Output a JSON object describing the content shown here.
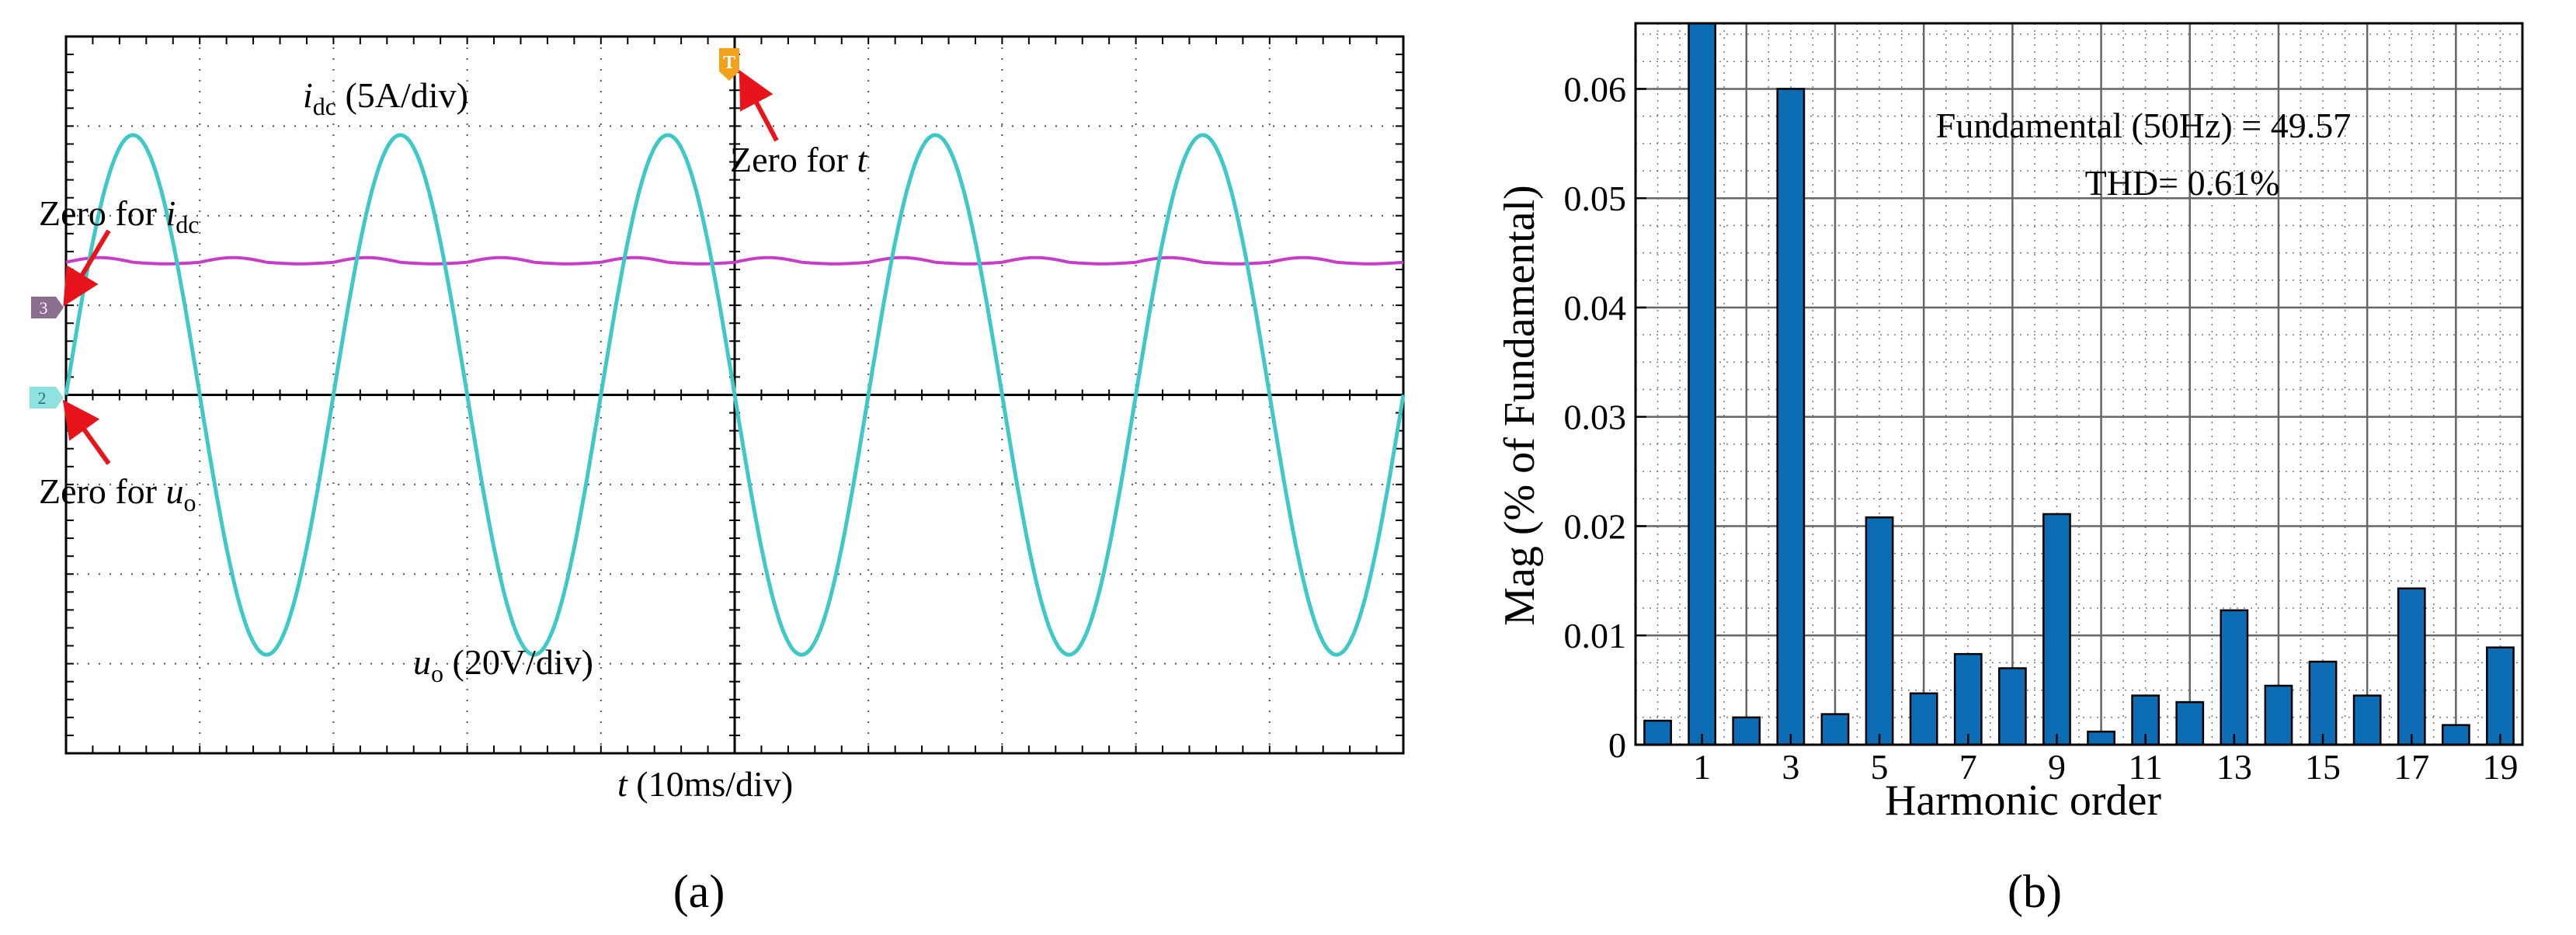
{
  "panel_a": {
    "label": "(a)",
    "idc_label": {
      "sym": "i",
      "sub": "dc",
      "unit": " (5A/div)"
    },
    "uo_label": {
      "sym": "u",
      "sub": "o",
      "unit": " (20V/div)"
    },
    "time_label": {
      "sym": "t",
      "unit": " (10ms/div)"
    },
    "zero_t": {
      "text": "Zero for ",
      "sym": "t"
    },
    "zero_idc": {
      "text": "Zero for ",
      "sym": "i",
      "sub": "dc"
    },
    "zero_uo": {
      "text": "Zero for ",
      "sym": "u",
      "sub": "o"
    },
    "marker_t": "T",
    "marker_ch3": "3",
    "marker_ch2": "2",
    "colors": {
      "idc": "#c63dc6",
      "uo": "#3ec9c6",
      "grid": "#000000",
      "arrow": "#e8141b",
      "marker_t": "#f2a11d",
      "marker_ch3": "#8a6f8f",
      "marker_ch2": "#8ee3e0"
    }
  },
  "panel_b": {
    "label": "(b)",
    "annotation_line1": "Fundamental (50Hz) = 49.57",
    "annotation_line2": "THD= 0.61%",
    "bar_color": "#0c6db4"
  },
  "chart_data": [
    {
      "type": "line",
      "xlabel": "t (10ms/div)",
      "x_divisions": 10,
      "y_divisions": 8,
      "series": [
        {
          "name": "idc",
          "scale": "5A/div",
          "shape": "dc with small ripple",
          "periods": 10
        },
        {
          "name": "uo",
          "scale": "20V/div",
          "shape": "sinusoid",
          "periods": 5,
          "amplitude_divisions": 2.5
        }
      ]
    },
    {
      "type": "bar",
      "xlabel": "Harmonic order",
      "ylabel": "Mag (% of Fundamental)",
      "categories": [
        0,
        1,
        2,
        3,
        4,
        5,
        6,
        7,
        8,
        9,
        10,
        11,
        12,
        13,
        14,
        15,
        16,
        17,
        18,
        19
      ],
      "values": [
        0.0022,
        0.066,
        0.0025,
        0.06,
        0.0028,
        0.0208,
        0.0047,
        0.0083,
        0.007,
        0.0211,
        0.0012,
        0.0045,
        0.0039,
        0.0123,
        0.0054,
        0.0076,
        0.0045,
        0.0143,
        0.0018,
        0.0089
      ],
      "xticks": [
        1,
        3,
        5,
        7,
        9,
        11,
        13,
        15,
        17,
        19
      ],
      "yticks": [
        0,
        0.01,
        0.02,
        0.03,
        0.04,
        0.05,
        0.06
      ],
      "ytick_labels": [
        "0",
        "0.01",
        "0.02",
        "0.03",
        "0.04",
        "0.05",
        "0.06"
      ],
      "ylim": [
        0,
        0.066
      ],
      "xlim": [
        -0.5,
        19.5
      ],
      "grid": true
    }
  ]
}
